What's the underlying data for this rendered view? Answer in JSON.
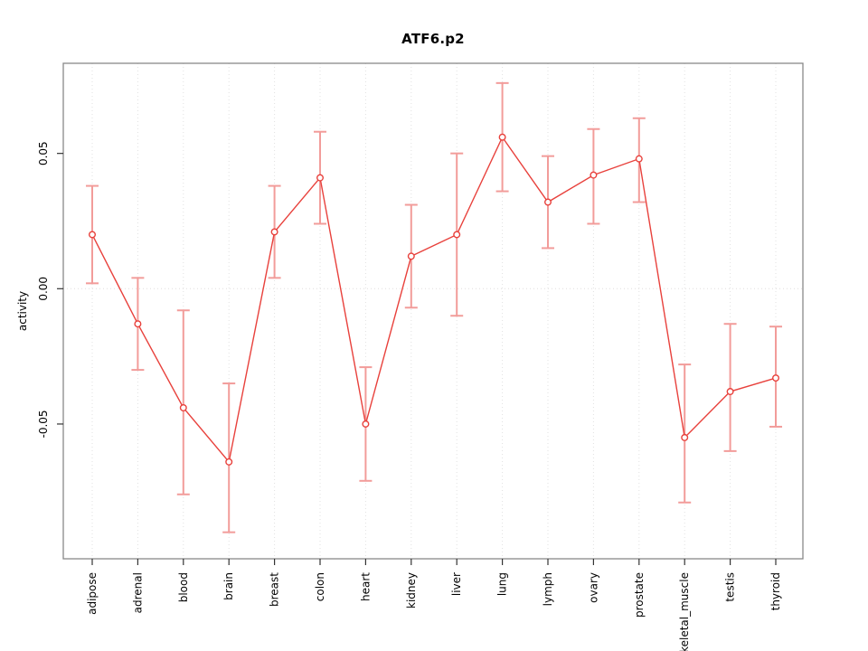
{
  "chart_data": {
    "type": "line",
    "title": "ATF6.p2",
    "xlabel": "",
    "ylabel": "activity",
    "categories": [
      "adipose",
      "adrenal",
      "blood",
      "brain",
      "breast",
      "colon",
      "heart",
      "kidney",
      "liver",
      "lung",
      "lymph",
      "ovary",
      "prostate",
      "skeletal_muscle",
      "testis",
      "thyroid"
    ],
    "series": [
      {
        "name": "activity",
        "values": [
          0.02,
          -0.013,
          -0.044,
          -0.064,
          0.021,
          0.041,
          -0.05,
          0.012,
          0.02,
          0.056,
          0.032,
          0.042,
          0.048,
          -0.055,
          -0.038,
          -0.033
        ],
        "lower": [
          0.002,
          -0.03,
          -0.076,
          -0.09,
          0.004,
          0.024,
          -0.071,
          -0.007,
          -0.01,
          0.036,
          0.015,
          0.024,
          0.032,
          -0.079,
          -0.06,
          -0.051
        ],
        "upper": [
          0.038,
          0.004,
          -0.008,
          -0.035,
          0.038,
          0.058,
          -0.029,
          0.031,
          0.05,
          0.076,
          0.049,
          0.059,
          0.063,
          -0.028,
          -0.013,
          -0.014
        ]
      }
    ],
    "yticks": [
      -0.05,
      0,
      0.05
    ],
    "ytick_labels": [
      "-0.05",
      "0.00",
      "0.05"
    ],
    "ylim": [
      -0.0998,
      0.0833
    ],
    "legend": "none",
    "grid": {
      "vertical_dotted_per_category": true,
      "horizontal_dotted_at_zero": true
    },
    "marker": "open-circle",
    "colors": {
      "line": "#e8413c",
      "point_stroke": "#e8413c",
      "point_fill": "#ffffff",
      "error_bar": "#f29c9a",
      "grid": "#e2e2e2",
      "zero_line": "#e0dede",
      "tick": "#333333",
      "panel_border": "#888888",
      "background": "#ffffff"
    }
  }
}
